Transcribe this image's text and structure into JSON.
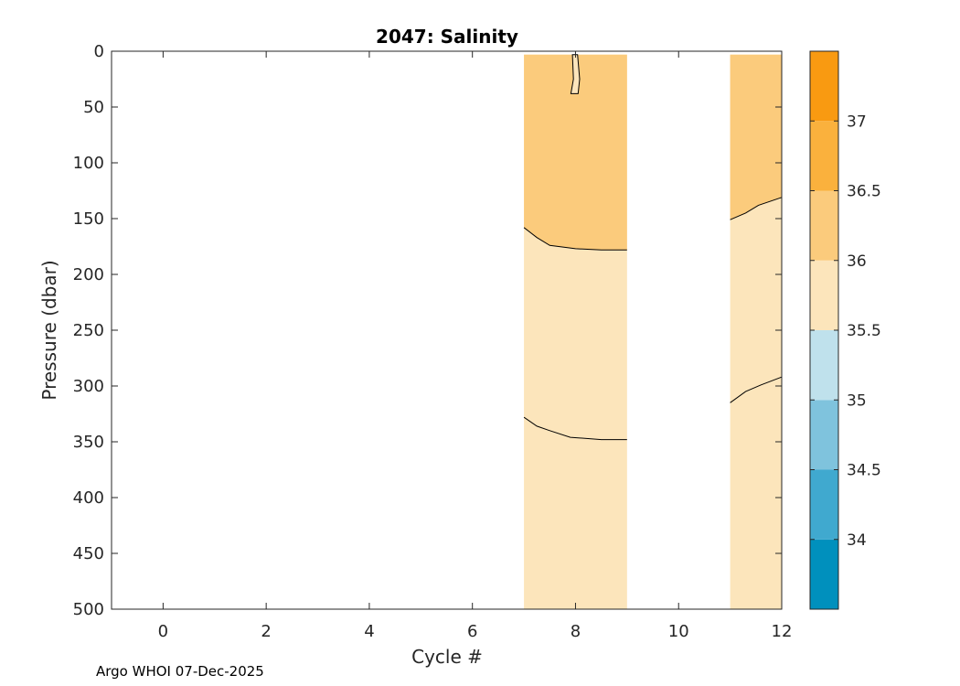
{
  "chart_data": {
    "type": "contourf",
    "title": "2047:  Salinity",
    "xlabel": "Cycle #",
    "ylabel": "Pressure (dbar)",
    "xlim": [
      -1,
      12
    ],
    "ylim": [
      0,
      500
    ],
    "y_reversed": true,
    "xticks": [
      0,
      2,
      4,
      6,
      8,
      10,
      12
    ],
    "yticks": [
      0,
      50,
      100,
      150,
      200,
      250,
      300,
      350,
      400,
      450,
      500
    ],
    "data_pressure_range": [
      3,
      500
    ],
    "colorbar": {
      "range": [
        33.5,
        37.5
      ],
      "ticks": [
        34,
        34.5,
        35,
        35.5,
        36,
        36.5,
        37
      ],
      "levels": [
        {
          "from": 33.5,
          "to": 34.0,
          "color": "#0090bd"
        },
        {
          "from": 34.0,
          "to": 34.5,
          "color": "#40a9cf"
        },
        {
          "from": 34.5,
          "to": 35.0,
          "color": "#7fc3dd"
        },
        {
          "from": 35.0,
          "to": 35.5,
          "color": "#bfe1ec"
        },
        {
          "from": 35.5,
          "to": 36.0,
          "color": "#fce5bb"
        },
        {
          "from": 36.0,
          "to": 36.5,
          "color": "#fbcb7c"
        },
        {
          "from": 36.5,
          "to": 37.0,
          "color": "#fab13d"
        },
        {
          "from": 37.0,
          "to": 37.5,
          "color": "#f99a11"
        }
      ]
    },
    "blocks": [
      {
        "x_range": [
          7,
          9
        ],
        "upper_fill": "#fbcb7c",
        "lower_fill": "#fce5bb",
        "boundary_36": [
          [
            7,
            158
          ],
          [
            7.25,
            167
          ],
          [
            7.5,
            174
          ],
          [
            8,
            177
          ],
          [
            8.5,
            178
          ],
          [
            9,
            178
          ]
        ],
        "contour_35_5": [
          [
            7,
            328
          ],
          [
            7.25,
            336
          ],
          [
            7.5,
            340
          ],
          [
            7.9,
            346
          ],
          [
            8.5,
            348
          ],
          [
            9,
            348
          ]
        ],
        "pocket": {
          "fill": "#fce5bb",
          "outline": [
            [
              7.94,
              3
            ],
            [
              7.96,
              25
            ],
            [
              7.91,
              38
            ],
            [
              8.05,
              38
            ],
            [
              8.08,
              25
            ],
            [
              8.04,
              3
            ]
          ]
        }
      },
      {
        "x_range": [
          11,
          12
        ],
        "upper_fill": "#fbcb7c",
        "lower_fill": "#fce5bb",
        "boundary_36": [
          [
            11,
            151
          ],
          [
            11.3,
            145
          ],
          [
            11.55,
            138
          ],
          [
            12,
            131
          ]
        ],
        "contour_35_5": [
          [
            11,
            315
          ],
          [
            11.3,
            305
          ],
          [
            11.6,
            299
          ],
          [
            12,
            292
          ]
        ]
      }
    ]
  },
  "footer": {
    "credit": "Argo WHOI 07-Dec-2025"
  }
}
